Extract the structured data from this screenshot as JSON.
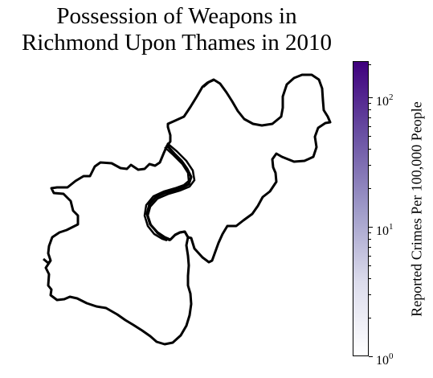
{
  "title": {
    "line1": "Possession of Weapons in",
    "line2": "Richmond Upon Thames in 2010"
  },
  "colorbar": {
    "label": "Reported Crimes Per 100,000 People",
    "scale": "log",
    "range": [
      1,
      190
    ],
    "colormap": [
      "#ffffff",
      "#dcdcec",
      "#9e9ac8",
      "#6a51a3",
      "#3f007d"
    ],
    "ticks": [
      {
        "base": "10",
        "exp": "0",
        "value": 1
      },
      {
        "base": "10",
        "exp": "1",
        "value": 10
      },
      {
        "base": "10",
        "exp": "2",
        "value": 100
      }
    ]
  },
  "map": {
    "region": "Richmond Upon Thames",
    "fill_color": "#ffffff",
    "outline_color": "#000000"
  }
}
